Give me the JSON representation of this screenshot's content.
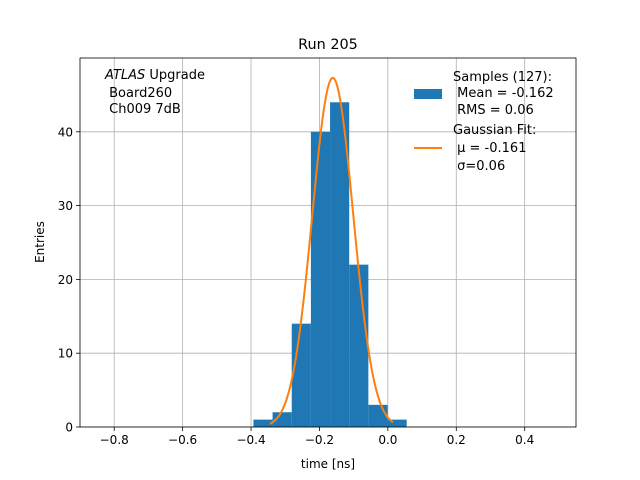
{
  "chart_data": {
    "type": "histogram",
    "title": "Run 205",
    "xlabel": "time [ns]",
    "ylabel": "Entries",
    "xlim": [
      -0.9,
      0.55
    ],
    "ylim": [
      0,
      50
    ],
    "xticks": [
      -0.8,
      -0.6,
      -0.4,
      -0.2,
      0.0,
      0.2,
      0.4
    ],
    "xtick_labels": [
      "−0.8",
      "−0.6",
      "−0.4",
      "−0.2",
      "0.0",
      "0.2",
      "0.4"
    ],
    "yticks": [
      0,
      10,
      20,
      30,
      40
    ],
    "ytick_labels": [
      "0",
      "10",
      "20",
      "30",
      "40"
    ],
    "grid": true,
    "annotation": {
      "line1_italic": "ATLAS",
      "line1_rest": " Upgrade",
      "line2": " Board260",
      "line3": " Ch009 7dB"
    },
    "histogram": {
      "color": "#1f77b4",
      "bin_edges": [
        -0.393,
        -0.337,
        -0.281,
        -0.225,
        -0.169,
        -0.113,
        -0.057,
        -0.001,
        0.055
      ],
      "counts": [
        1,
        2,
        14,
        40,
        44,
        22,
        3,
        1
      ]
    },
    "fit": {
      "color": "#ff7f0e",
      "mu": -0.161,
      "sigma": 0.06,
      "amplitude": 47.3,
      "x_range": [
        -0.345,
        0.015
      ]
    },
    "legend": {
      "position": "top-right",
      "entries": [
        {
          "kind": "patch",
          "lines": [
            "Samples (127):",
            " Mean = -0.162",
            " RMS = 0.06"
          ]
        },
        {
          "kind": "line",
          "lines": [
            "Gaussian Fit:",
            " μ = -0.161",
            " σ=0.06"
          ]
        }
      ]
    }
  }
}
